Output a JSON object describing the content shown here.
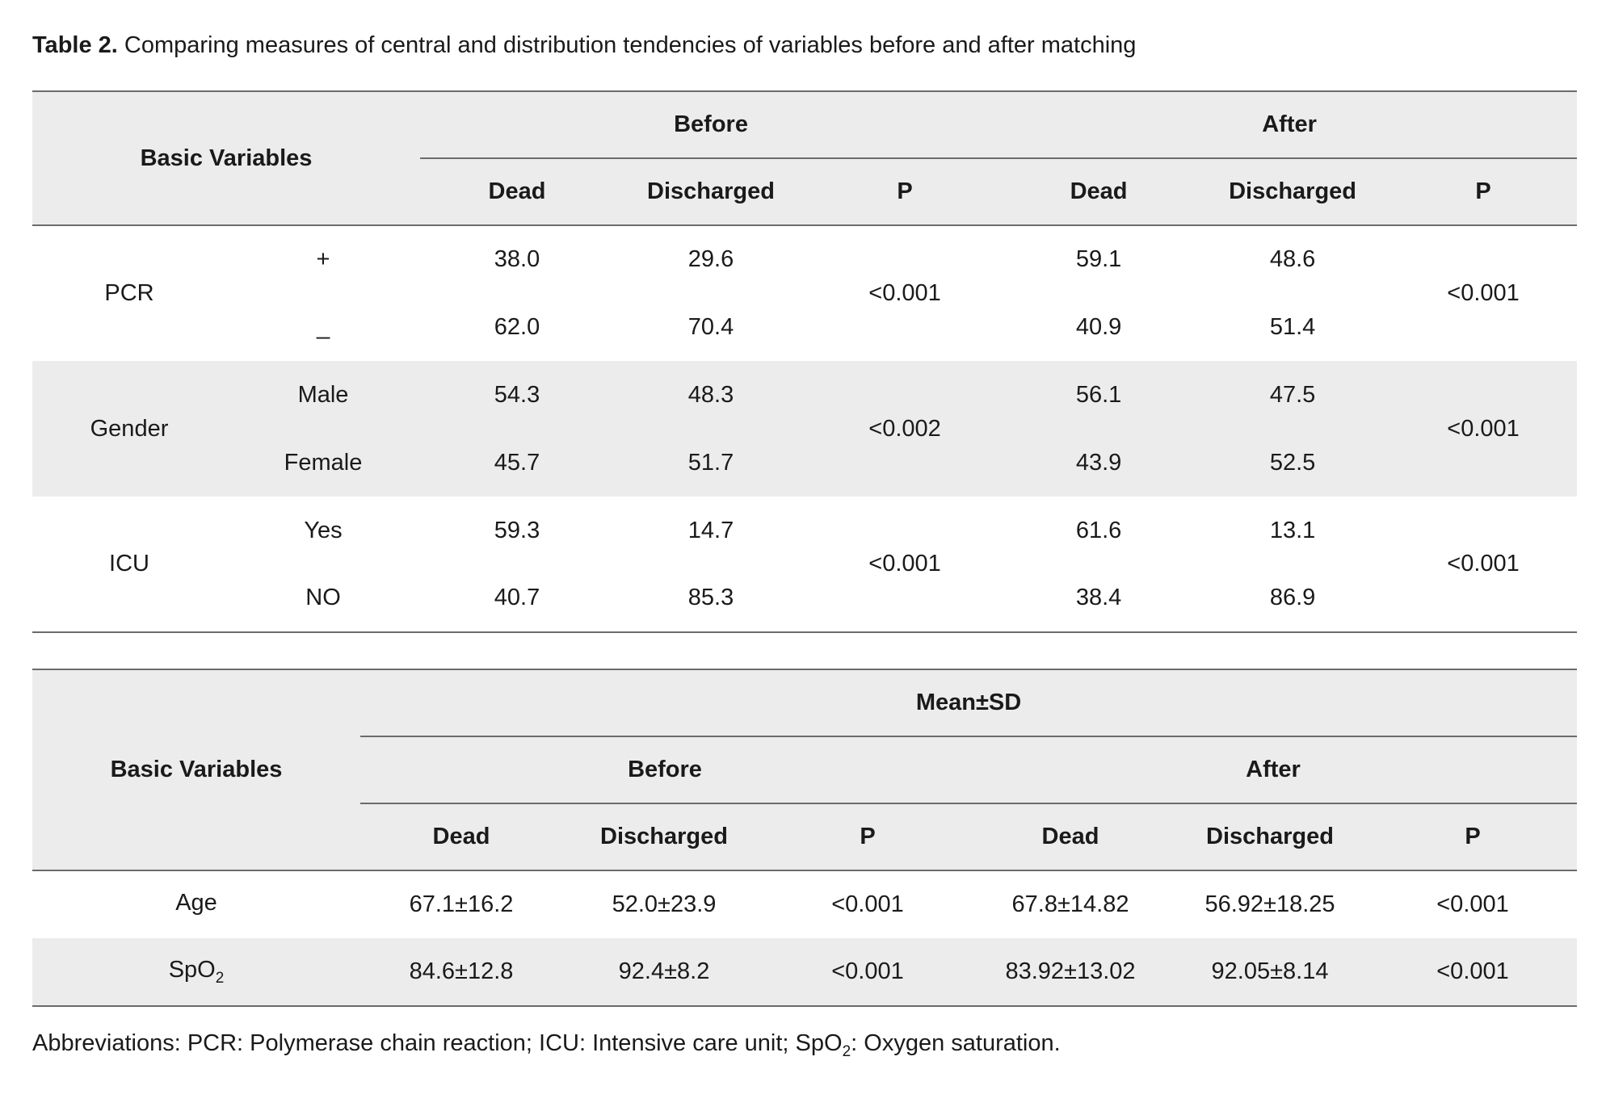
{
  "caption": {
    "label": "Table 2.",
    "text": " Comparing measures of central and distribution tendencies of variables before and after matching"
  },
  "table1": {
    "header": {
      "basic_variables": "Basic Variables",
      "before": "Before",
      "after": "After",
      "dead": "Dead",
      "discharged": "Discharged",
      "p": "P"
    },
    "groups": [
      {
        "name": "PCR",
        "p_before": "<0.001",
        "p_after": "<0.001",
        "rows": [
          {
            "level": "+",
            "before_dead": "38.0",
            "before_discharged": "29.6",
            "after_dead": "59.1",
            "after_discharged": "48.6"
          },
          {
            "level": "_",
            "before_dead": "62.0",
            "before_discharged": "70.4",
            "after_dead": "40.9",
            "after_discharged": "51.4"
          }
        ]
      },
      {
        "name": "Gender",
        "p_before": "<0.002",
        "p_after": "<0.001",
        "rows": [
          {
            "level": "Male",
            "before_dead": "54.3",
            "before_discharged": "48.3",
            "after_dead": "56.1",
            "after_discharged": "47.5"
          },
          {
            "level": "Female",
            "before_dead": "45.7",
            "before_discharged": "51.7",
            "after_dead": "43.9",
            "after_discharged": "52.5"
          }
        ]
      },
      {
        "name": "ICU",
        "p_before": "<0.001",
        "p_after": "<0.001",
        "rows": [
          {
            "level": "Yes",
            "before_dead": "59.3",
            "before_discharged": "14.7",
            "after_dead": "61.6",
            "after_discharged": "13.1"
          },
          {
            "level": "NO",
            "before_dead": "40.7",
            "before_discharged": "85.3",
            "after_dead": "38.4",
            "after_discharged": "86.9"
          }
        ]
      }
    ]
  },
  "table2": {
    "header": {
      "basic_variables": "Basic Variables",
      "mean_sd": "Mean±SD",
      "before": "Before",
      "after": "After",
      "dead": "Dead",
      "discharged": "Discharged",
      "p": "P"
    },
    "rows": [
      {
        "variable": "Age",
        "variable_sub": "",
        "before_dead": "67.1±16.2",
        "before_discharged": "52.0±23.9",
        "p_before": "<0.001",
        "after_dead": "67.8±14.82",
        "after_discharged": "56.92±18.25",
        "p_after": "<0.001"
      },
      {
        "variable": "SpO",
        "variable_sub": "2",
        "before_dead": "84.6±12.8",
        "before_discharged": "92.4±8.2",
        "p_before": "<0.001",
        "after_dead": "83.92±13.02",
        "after_discharged": "92.05±8.14",
        "p_after": "<0.001"
      }
    ]
  },
  "footnote": {
    "part1": "Abbreviations: PCR: Polymerase chain reaction; ICU: Intensive care unit; SpO",
    "sub": "2",
    "part2": ": Oxygen saturation."
  }
}
